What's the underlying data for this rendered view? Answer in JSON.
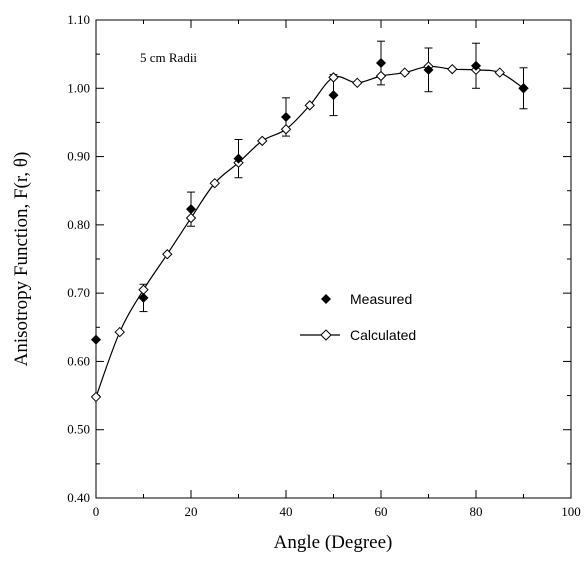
{
  "chart_data": {
    "type": "scatter",
    "annotation": "5 cm Radii",
    "xlabel": "Angle (Degree)",
    "ylabel": "Anisotropy Function, F(r, θ)",
    "xlim": [
      0,
      100
    ],
    "ylim": [
      0.4,
      1.1
    ],
    "x_ticks": [
      0,
      20,
      40,
      60,
      80,
      100
    ],
    "x_tick_labels": [
      "0",
      "20",
      "40",
      "60",
      "80",
      "100"
    ],
    "y_ticks": [
      0.4,
      0.5,
      0.6,
      0.7,
      0.8,
      0.9,
      1.0,
      1.1
    ],
    "y_tick_labels": [
      "0.40",
      "0.50",
      "0.60",
      "0.70",
      "0.80",
      "0.90",
      "1.00",
      "1.10"
    ],
    "legend_position": "center-right",
    "series": [
      {
        "name": "Measured",
        "marker": "filled-diamond",
        "x": [
          0,
          10,
          20,
          30,
          40,
          50,
          60,
          70,
          80,
          90
        ],
        "y": [
          0.632,
          0.693,
          0.823,
          0.897,
          0.958,
          0.99,
          1.037,
          1.027,
          1.033,
          1.0
        ],
        "error": [
          0.0,
          0.02,
          0.025,
          0.028,
          0.028,
          0.03,
          0.032,
          0.032,
          0.033,
          0.03
        ]
      },
      {
        "name": "Calculated",
        "marker": "open-diamond",
        "line": true,
        "x": [
          0,
          5,
          10,
          15,
          20,
          25,
          30,
          35,
          40,
          45,
          50,
          55,
          60,
          65,
          70,
          75,
          80,
          85,
          90
        ],
        "y": [
          0.548,
          0.643,
          0.705,
          0.757,
          0.81,
          0.861,
          0.891,
          0.923,
          0.94,
          0.975,
          1.016,
          1.008,
          1.018,
          1.023,
          1.032,
          1.028,
          1.027,
          1.023,
          1.0
        ]
      }
    ]
  },
  "colors": {
    "ink": "#000000",
    "background": "#ffffff"
  }
}
